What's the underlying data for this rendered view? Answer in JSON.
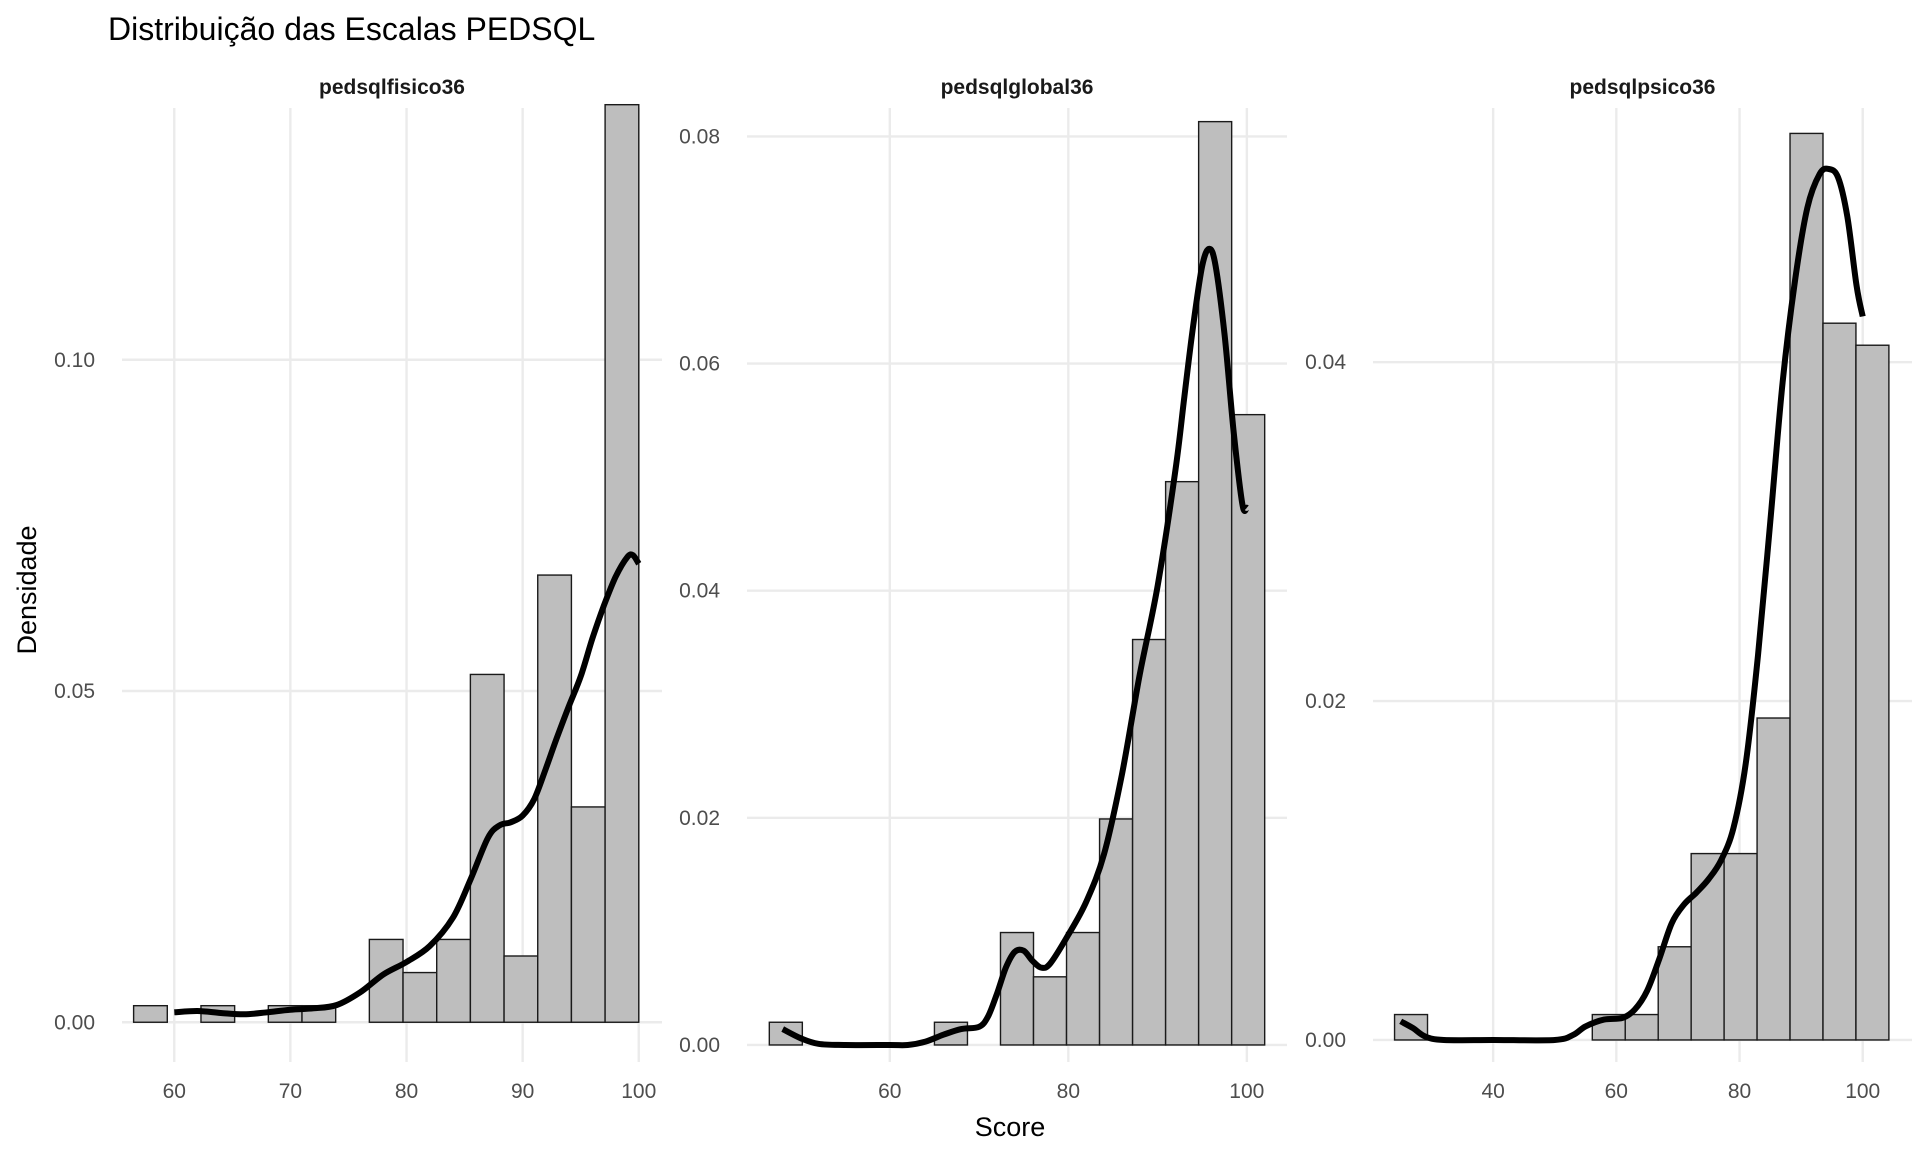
{
  "chart_data": {
    "type": "bar",
    "title": "Distribuição das Escalas PEDSQL",
    "xlabel": "Score",
    "ylabel": "Densidade",
    "grid": true,
    "legend": "none",
    "facets": [
      {
        "name": "pedsqlfisico36",
        "xlim": [
          55.5,
          102
        ],
        "ylim": [
          -0.006,
          0.138
        ],
        "xticks": [
          60,
          70,
          80,
          90,
          100
        ],
        "xtick_labels": [
          "60",
          "70",
          "80",
          "90",
          "100"
        ],
        "yticks": [
          0,
          0.05,
          0.1
        ],
        "ytick_labels": [
          "0.00",
          "0.05",
          "0.10"
        ],
        "bins": [
          {
            "x0": 56.5,
            "x1": 59.4,
            "density": 0.0025
          },
          {
            "x0": 59.4,
            "x1": 62.3,
            "density": 0.0
          },
          {
            "x0": 62.3,
            "x1": 65.2,
            "density": 0.0025
          },
          {
            "x0": 65.2,
            "x1": 68.1,
            "density": 0.0
          },
          {
            "x0": 68.1,
            "x1": 71.0,
            "density": 0.0025
          },
          {
            "x0": 71.0,
            "x1": 73.9,
            "density": 0.0025
          },
          {
            "x0": 73.9,
            "x1": 76.8,
            "density": 0.0
          },
          {
            "x0": 76.8,
            "x1": 79.7,
            "density": 0.0125
          },
          {
            "x0": 79.7,
            "x1": 82.6,
            "density": 0.0075
          },
          {
            "x0": 82.6,
            "x1": 85.5,
            "density": 0.0125
          },
          {
            "x0": 85.5,
            "x1": 88.4,
            "density": 0.0525
          },
          {
            "x0": 88.4,
            "x1": 91.3,
            "density": 0.01
          },
          {
            "x0": 91.3,
            "x1": 94.2,
            "density": 0.0675
          },
          {
            "x0": 94.2,
            "x1": 97.1,
            "density": 0.0325
          },
          {
            "x0": 97.1,
            "x1": 100.0,
            "density": 0.1385
          }
        ],
        "density": [
          [
            60,
            0.0015
          ],
          [
            62,
            0.0017
          ],
          [
            64,
            0.0014
          ],
          [
            66,
            0.0012
          ],
          [
            68,
            0.0015
          ],
          [
            70,
            0.0019
          ],
          [
            72,
            0.0021
          ],
          [
            74,
            0.0026
          ],
          [
            76,
            0.0045
          ],
          [
            78,
            0.0072
          ],
          [
            80,
            0.0091
          ],
          [
            82,
            0.0115
          ],
          [
            84,
            0.0158
          ],
          [
            85.5,
            0.0215
          ],
          [
            87,
            0.0278
          ],
          [
            88,
            0.0297
          ],
          [
            89,
            0.0302
          ],
          [
            90,
            0.0312
          ],
          [
            91,
            0.0337
          ],
          [
            92,
            0.0383
          ],
          [
            93,
            0.0432
          ],
          [
            94,
            0.0478
          ],
          [
            95,
            0.0522
          ],
          [
            96,
            0.0579
          ],
          [
            97,
            0.0629
          ],
          [
            98,
            0.0672
          ],
          [
            99,
            0.0702
          ],
          [
            99.5,
            0.0705
          ],
          [
            100,
            0.0692
          ]
        ]
      },
      {
        "name": "pedsqlglobal36",
        "xlim": [
          44,
          104.5
        ],
        "ylim": [
          -0.0015,
          0.0825
        ],
        "xticks": [
          60,
          80,
          100
        ],
        "xtick_labels": [
          "60",
          "80",
          "100"
        ],
        "yticks": [
          0,
          0.02,
          0.04,
          0.06,
          0.08
        ],
        "ytick_labels": [
          "0.00",
          "0.02",
          "0.04",
          "0.06",
          "0.08"
        ],
        "bins": [
          {
            "x0": 46.5,
            "x1": 50.2,
            "density": 0.002
          },
          {
            "x0": 50.2,
            "x1": 53.9,
            "density": 0.0
          },
          {
            "x0": 53.9,
            "x1": 57.6,
            "density": 0.0
          },
          {
            "x0": 57.6,
            "x1": 61.3,
            "density": 0.0
          },
          {
            "x0": 61.3,
            "x1": 65.0,
            "density": 0.0
          },
          {
            "x0": 65.0,
            "x1": 68.7,
            "density": 0.002
          },
          {
            "x0": 68.7,
            "x1": 72.4,
            "density": 0.0
          },
          {
            "x0": 72.4,
            "x1": 76.1,
            "density": 0.0099
          },
          {
            "x0": 76.1,
            "x1": 79.8,
            "density": 0.006
          },
          {
            "x0": 79.8,
            "x1": 83.5,
            "density": 0.0099
          },
          {
            "x0": 83.5,
            "x1": 87.2,
            "density": 0.0199
          },
          {
            "x0": 87.2,
            "x1": 90.9,
            "density": 0.0357
          },
          {
            "x0": 90.9,
            "x1": 94.6,
            "density": 0.0496
          },
          {
            "x0": 94.6,
            "x1": 98.3,
            "density": 0.0813
          },
          {
            "x0": 98.3,
            "x1": 102.0,
            "density": 0.0555
          }
        ],
        "density": [
          [
            48,
            0.0014
          ],
          [
            50,
            0.0006
          ],
          [
            52,
            0.0001
          ],
          [
            55,
            0.0
          ],
          [
            60,
            0.0
          ],
          [
            62,
            0.0
          ],
          [
            64,
            0.0003
          ],
          [
            66,
            0.0009
          ],
          [
            68,
            0.0014
          ],
          [
            70,
            0.0016
          ],
          [
            71,
            0.0025
          ],
          [
            72,
            0.0045
          ],
          [
            73,
            0.0068
          ],
          [
            74,
            0.0082
          ],
          [
            75,
            0.0083
          ],
          [
            76,
            0.0074
          ],
          [
            77,
            0.0068
          ],
          [
            78,
            0.0072
          ],
          [
            80,
            0.0097
          ],
          [
            82,
            0.0126
          ],
          [
            84,
            0.0168
          ],
          [
            86,
            0.0238
          ],
          [
            88,
            0.0326
          ],
          [
            90,
            0.0404
          ],
          [
            92,
            0.0506
          ],
          [
            93,
            0.0571
          ],
          [
            94,
            0.0634
          ],
          [
            95,
            0.0686
          ],
          [
            95.8,
            0.0701
          ],
          [
            96.5,
            0.0686
          ],
          [
            97.5,
            0.0626
          ],
          [
            98.5,
            0.0542
          ],
          [
            99.5,
            0.0476
          ],
          [
            100,
            0.0473
          ]
        ]
      },
      {
        "name": "pedsqlpsico36",
        "xlim": [
          20.5,
          108
        ],
        "ylim": [
          -0.0013,
          0.055
        ],
        "xticks": [
          40,
          60,
          80,
          100
        ],
        "xtick_labels": [
          "40",
          "60",
          "80",
          "100"
        ],
        "yticks": [
          0,
          0.02,
          0.04
        ],
        "ytick_labels": [
          "0.00",
          "0.02",
          "0.04"
        ],
        "bins": [
          {
            "x0": 24.0,
            "x1": 29.35,
            "density": 0.0015
          },
          {
            "x0": 29.35,
            "x1": 34.7,
            "density": 0.0
          },
          {
            "x0": 34.7,
            "x1": 40.05,
            "density": 0.0
          },
          {
            "x0": 40.05,
            "x1": 45.4,
            "density": 0.0
          },
          {
            "x0": 45.4,
            "x1": 50.75,
            "density": 0.0
          },
          {
            "x0": 50.75,
            "x1": 56.1,
            "density": 0.0
          },
          {
            "x0": 56.1,
            "x1": 61.45,
            "density": 0.0015
          },
          {
            "x0": 61.45,
            "x1": 66.8,
            "density": 0.0015
          },
          {
            "x0": 66.8,
            "x1": 72.15,
            "density": 0.0055
          },
          {
            "x0": 72.15,
            "x1": 77.5,
            "density": 0.011
          },
          {
            "x0": 77.5,
            "x1": 82.85,
            "density": 0.011
          },
          {
            "x0": 82.85,
            "x1": 88.2,
            "density": 0.019
          },
          {
            "x0": 88.2,
            "x1": 93.55,
            "density": 0.0535
          },
          {
            "x0": 93.55,
            "x1": 98.9,
            "density": 0.0423
          },
          {
            "x0": 98.9,
            "x1": 104.25,
            "density": 0.041
          }
        ],
        "density": [
          [
            25,
            0.0011
          ],
          [
            27,
            0.0007
          ],
          [
            29,
            0.0002
          ],
          [
            32,
            0.0
          ],
          [
            40,
            0.0
          ],
          [
            50,
            0.0
          ],
          [
            53,
            0.0003
          ],
          [
            55,
            0.0008
          ],
          [
            58,
            0.0012
          ],
          [
            61,
            0.0013
          ],
          [
            63,
            0.0018
          ],
          [
            65,
            0.0029
          ],
          [
            67,
            0.0048
          ],
          [
            69,
            0.0069
          ],
          [
            71,
            0.008
          ],
          [
            73,
            0.0087
          ],
          [
            75,
            0.0095
          ],
          [
            77,
            0.0106
          ],
          [
            79,
            0.0125
          ],
          [
            81,
            0.0163
          ],
          [
            83,
            0.0227
          ],
          [
            85,
            0.0306
          ],
          [
            87,
            0.0388
          ],
          [
            89,
            0.0448
          ],
          [
            91,
            0.0491
          ],
          [
            93,
            0.0511
          ],
          [
            94.5,
            0.0514
          ],
          [
            96,
            0.0509
          ],
          [
            97.5,
            0.0486
          ],
          [
            99,
            0.0445
          ],
          [
            100,
            0.0427
          ]
        ]
      }
    ]
  }
}
